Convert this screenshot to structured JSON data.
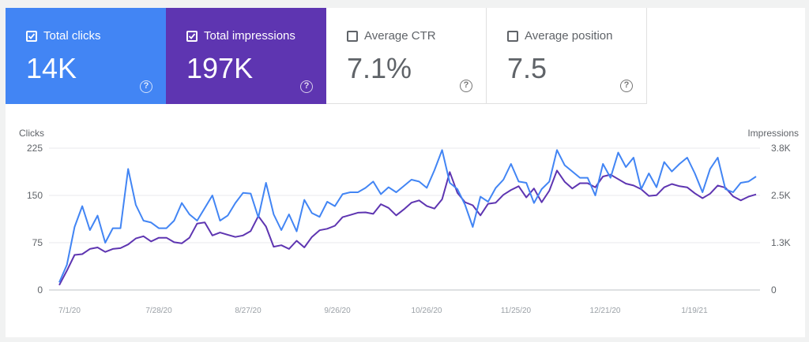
{
  "metrics": [
    {
      "label": "Total clicks",
      "value": "14K",
      "checked": true
    },
    {
      "label": "Total impressions",
      "value": "197K",
      "checked": true
    },
    {
      "label": "Average CTR",
      "value": "7.1%",
      "checked": false
    },
    {
      "label": "Average position",
      "value": "7.5",
      "checked": false
    }
  ],
  "help_glyph": "?",
  "colors": {
    "clicks": "#4285f4",
    "impressions": "#5e35b1",
    "grid": "#e8eaed",
    "text": "#5f6368"
  },
  "chart_data": {
    "type": "line",
    "left_axis": {
      "label": "Clicks",
      "ticks": [
        "225",
        "150",
        "75",
        "0"
      ],
      "ylim": [
        0,
        225
      ]
    },
    "right_axis": {
      "label": "Impressions",
      "ticks": [
        "3.8K",
        "2.5K",
        "1.3K",
        "0"
      ],
      "ylim": [
        0,
        3800
      ]
    },
    "x_tick_labels": [
      "7/1/20",
      "7/28/20",
      "8/27/20",
      "9/26/20",
      "10/26/20",
      "11/25/20",
      "12/21/20",
      "1/19/21"
    ],
    "series": [
      {
        "name": "Total clicks",
        "axis": "left",
        "values": [
          12,
          40,
          100,
          133,
          95,
          118,
          75,
          98,
          98,
          192,
          135,
          110,
          107,
          98,
          98,
          110,
          138,
          120,
          110,
          130,
          150,
          110,
          118,
          138,
          154,
          153,
          115,
          170,
          120,
          95,
          120,
          93,
          143,
          122,
          116,
          140,
          133,
          152,
          155,
          155,
          162,
          172,
          152,
          163,
          155,
          165,
          175,
          172,
          162,
          190,
          222,
          170,
          160,
          135,
          100,
          148,
          140,
          162,
          175,
          200,
          172,
          170,
          138,
          160,
          172,
          222,
          198,
          188,
          178,
          178,
          150,
          200,
          178,
          218,
          195,
          210,
          160,
          185,
          163,
          203,
          188,
          200,
          210,
          185,
          155,
          192,
          210,
          160,
          155,
          170,
          172,
          180
        ]
      },
      {
        "name": "Total impressions",
        "axis": "right",
        "values": [
          130,
          520,
          940,
          960,
          1100,
          1140,
          1020,
          1100,
          1120,
          1220,
          1380,
          1440,
          1300,
          1400,
          1400,
          1280,
          1250,
          1400,
          1780,
          1810,
          1460,
          1540,
          1480,
          1420,
          1460,
          1580,
          1980,
          1700,
          1160,
          1200,
          1100,
          1320,
          1140,
          1420,
          1600,
          1640,
          1720,
          1950,
          2010,
          2070,
          2080,
          2040,
          2300,
          2200,
          2000,
          2160,
          2340,
          2400,
          2250,
          2180,
          2430,
          3160,
          2600,
          2350,
          2270,
          2000,
          2310,
          2340,
          2550,
          2680,
          2780,
          2480,
          2720,
          2350,
          2660,
          3200,
          2900,
          2720,
          2860,
          2860,
          2750,
          3040,
          3090,
          2970,
          2850,
          2800,
          2700,
          2520,
          2540,
          2750,
          2840,
          2780,
          2750,
          2590,
          2460,
          2580,
          2800,
          2740,
          2510,
          2400,
          2500,
          2560
        ]
      }
    ]
  }
}
